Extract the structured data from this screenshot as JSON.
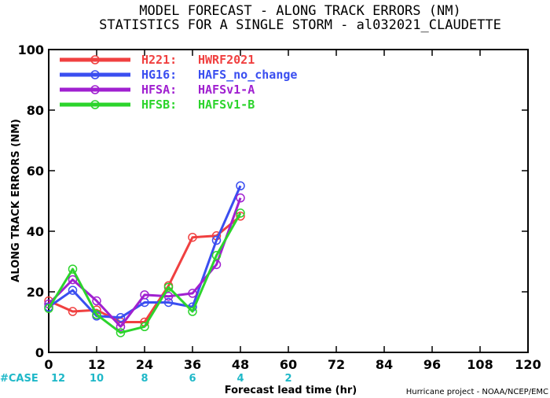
{
  "chart_data": {
    "type": "line",
    "title": "MODEL FORECAST - ALONG TRACK ERRORS (NM)",
    "subtitle": "STATISTICS FOR A SINGLE STORM - al032021_CLAUDETTE",
    "xlabel": "Forecast lead time (hr)",
    "ylabel": "ALONG TRACK ERRORS (NM)",
    "xlim": [
      0,
      120
    ],
    "ylim": [
      0,
      100
    ],
    "xticks": [
      0,
      12,
      24,
      36,
      48,
      60,
      72,
      84,
      96,
      108,
      120
    ],
    "yticks": [
      0,
      20,
      40,
      60,
      80,
      100
    ],
    "grid": false,
    "legend_position": "top-left",
    "case_label": "#CASE",
    "case_counts": [
      {
        "x": 0,
        "count": "12"
      },
      {
        "x": 12,
        "count": "10"
      },
      {
        "x": 24,
        "count": "8"
      },
      {
        "x": 36,
        "count": "6"
      },
      {
        "x": 48,
        "count": "4"
      },
      {
        "x": 60,
        "count": "2"
      }
    ],
    "credit": "Hurricane project - NOAA/NCEP/EMC",
    "series": [
      {
        "name": "H221:",
        "desc": "HWRF2021",
        "color": "#f04040",
        "x": [
          0,
          6,
          12,
          18,
          24,
          30,
          36,
          42,
          48
        ],
        "y": [
          17,
          13.5,
          14,
          10,
          10,
          22,
          38,
          38.5,
          45
        ]
      },
      {
        "name": "HG16:",
        "desc": "HAFS_no_change",
        "color": "#3a4ef0",
        "x": [
          0,
          6,
          12,
          18,
          24,
          30,
          36,
          42,
          48
        ],
        "y": [
          15,
          20.5,
          12,
          11.5,
          16.5,
          16.5,
          15,
          37,
          55
        ]
      },
      {
        "name": "HFSA:",
        "desc": "HAFSv1-A",
        "color": "#a020d0",
        "x": [
          0,
          6,
          12,
          18,
          24,
          30,
          36,
          42,
          48
        ],
        "y": [
          16,
          24,
          17,
          8.5,
          19,
          18.5,
          19.5,
          29,
          51
        ]
      },
      {
        "name": "HFSB:",
        "desc": "HAFSv1-B",
        "color": "#2cd42c",
        "x": [
          0,
          6,
          12,
          18,
          24,
          30,
          36,
          42,
          48
        ],
        "y": [
          14.5,
          27.5,
          12.5,
          6.5,
          8.5,
          21.5,
          13.5,
          32,
          46
        ]
      }
    ]
  }
}
